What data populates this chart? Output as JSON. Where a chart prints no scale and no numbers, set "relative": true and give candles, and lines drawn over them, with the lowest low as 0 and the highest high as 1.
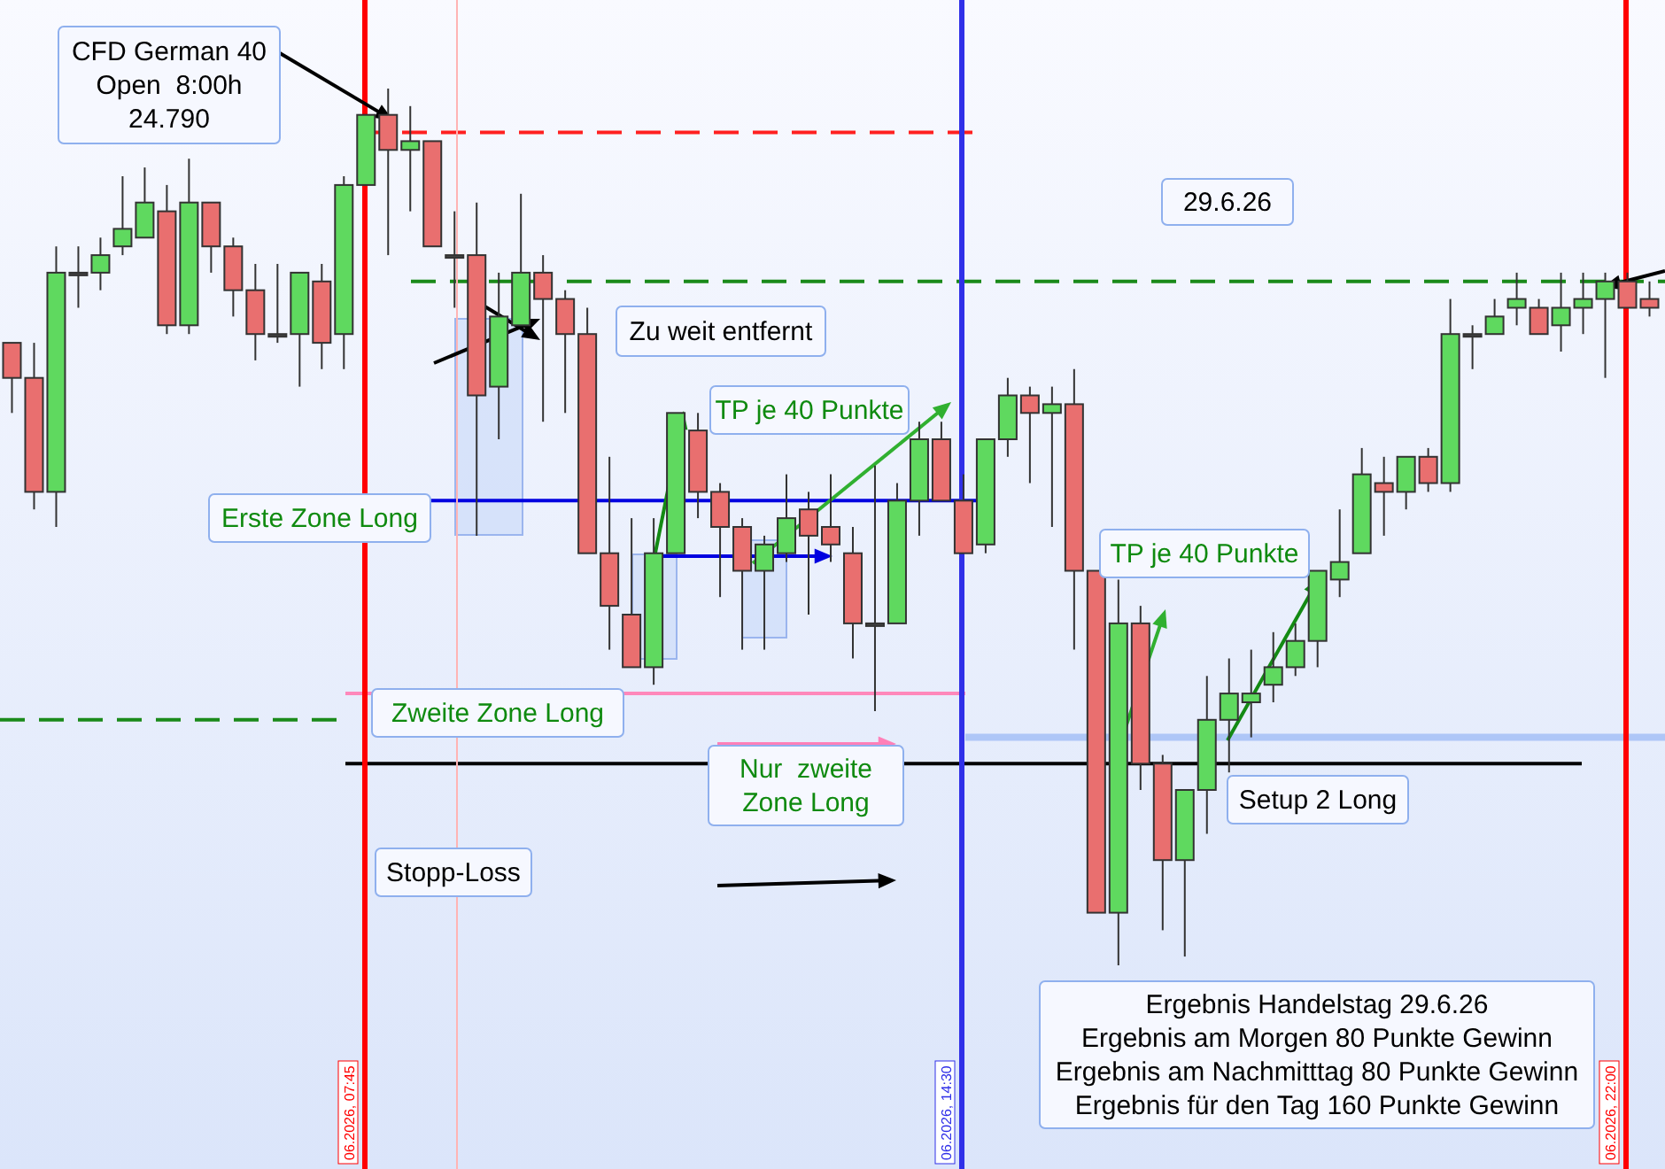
{
  "chart_data": {
    "type": "candlestick",
    "relative": true,
    "categories": [
      null,
      null,
      null,
      null,
      null,
      null,
      null,
      null,
      null,
      null,
      null,
      null,
      null,
      null,
      null,
      null,
      null,
      null,
      null,
      null,
      null,
      null,
      null,
      null,
      null,
      null,
      null,
      null,
      null,
      null,
      null,
      null,
      null,
      null,
      null,
      null,
      null,
      null,
      null,
      null,
      null,
      null,
      null,
      null,
      null,
      null,
      null,
      null,
      null,
      null,
      null,
      null,
      null,
      null,
      null,
      null,
      null,
      null,
      null,
      null,
      null,
      null,
      null,
      null,
      null,
      null,
      null,
      null,
      null,
      null,
      null,
      null,
      null,
      null,
      null
    ],
    "ohlc": [
      [
        0.71,
        0.71,
        0.63,
        0.67
      ],
      [
        0.67,
        0.71,
        0.52,
        0.54
      ],
      [
        0.54,
        0.82,
        0.5,
        0.79
      ],
      [
        0.79,
        0.82,
        0.75,
        0.79
      ],
      [
        0.79,
        0.83,
        0.77,
        0.81
      ],
      [
        0.82,
        0.9,
        0.81,
        0.84
      ],
      [
        0.83,
        0.91,
        0.83,
        0.87
      ],
      [
        0.86,
        0.89,
        0.72,
        0.73
      ],
      [
        0.73,
        0.92,
        0.72,
        0.87
      ],
      [
        0.87,
        0.87,
        0.79,
        0.82
      ],
      [
        0.82,
        0.83,
        0.74,
        0.77
      ],
      [
        0.77,
        0.8,
        0.69,
        0.72
      ],
      [
        0.72,
        0.8,
        0.71,
        0.72
      ],
      [
        0.72,
        0.79,
        0.66,
        0.79
      ],
      [
        0.78,
        0.8,
        0.68,
        0.71
      ],
      [
        0.72,
        0.9,
        0.68,
        0.89
      ],
      [
        0.89,
        0.97,
        0.89,
        0.97
      ],
      [
        0.97,
        1,
        0.81,
        0.93
      ],
      [
        0.93,
        0.98,
        0.86,
        0.94
      ],
      [
        0.94,
        0.94,
        0.82,
        0.82
      ],
      [
        0.81,
        0.86,
        0.75,
        0.81
      ],
      [
        0.81,
        0.87,
        0.49,
        0.65
      ],
      [
        0.66,
        0.79,
        0.6,
        0.74
      ],
      [
        0.73,
        0.88,
        0.73,
        0.79
      ],
      [
        0.79,
        0.81,
        0.62,
        0.76
      ],
      [
        0.76,
        0.77,
        0.63,
        0.72
      ],
      [
        0.72,
        0.75,
        0.47,
        0.47
      ],
      [
        0.47,
        0.58,
        0.36,
        0.41
      ],
      [
        0.4,
        0.51,
        0.34,
        0.34
      ],
      [
        0.34,
        0.51,
        0.32,
        0.47
      ],
      [
        0.47,
        0.63,
        0.47,
        0.63
      ],
      [
        0.61,
        0.63,
        0.51,
        0.54
      ],
      [
        0.54,
        0.55,
        0.42,
        0.5
      ],
      [
        0.5,
        0.51,
        0.36,
        0.45
      ],
      [
        0.45,
        0.49,
        0.36,
        0.48
      ],
      [
        0.47,
        0.56,
        0.46,
        0.51
      ],
      [
        0.52,
        0.54,
        0.4,
        0.49
      ],
      [
        0.5,
        0.56,
        0.46,
        0.48
      ],
      [
        0.47,
        0.5,
        0.35,
        0.39
      ],
      [
        0.39,
        0.57,
        0.29,
        0.39
      ],
      [
        0.39,
        0.55,
        0.39,
        0.53
      ],
      [
        0.53,
        0.62,
        0.49,
        0.6
      ],
      [
        0.6,
        0.62,
        0.53,
        0.53
      ],
      [
        0.53,
        0.56,
        0.47,
        0.47
      ],
      [
        0.48,
        0.6,
        0.47,
        0.6
      ],
      [
        0.6,
        0.67,
        0.58,
        0.65
      ],
      [
        0.65,
        0.66,
        0.55,
        0.63
      ],
      [
        0.63,
        0.66,
        0.5,
        0.64
      ],
      [
        0.64,
        0.68,
        0.36,
        0.45
      ],
      [
        0.45,
        0.45,
        0.06,
        0.06
      ],
      [
        0.06,
        0.44,
        0,
        0.39
      ],
      [
        0.39,
        0.41,
        0.2,
        0.23
      ],
      [
        0.23,
        0.24,
        0.04,
        0.12
      ],
      [
        0.12,
        0.2,
        0.01,
        0.2
      ],
      [
        0.2,
        0.33,
        0.15,
        0.28
      ],
      [
        0.28,
        0.35,
        0.22,
        0.31
      ],
      [
        0.3,
        0.36,
        0.26,
        0.31
      ],
      [
        0.32,
        0.38,
        0.3,
        0.34
      ],
      [
        0.34,
        0.39,
        0.33,
        0.37
      ],
      [
        0.37,
        0.45,
        0.34,
        0.45
      ],
      [
        0.44,
        0.52,
        0.42,
        0.46
      ],
      [
        0.47,
        0.59,
        0.47,
        0.56
      ],
      [
        0.55,
        0.58,
        0.49,
        0.54
      ],
      [
        0.54,
        0.58,
        0.52,
        0.58
      ],
      [
        0.58,
        0.59,
        0.54,
        0.55
      ],
      [
        0.55,
        0.76,
        0.54,
        0.72
      ],
      [
        0.72,
        0.73,
        0.68,
        0.72
      ],
      [
        0.72,
        0.76,
        0.72,
        0.74
      ],
      [
        0.75,
        0.79,
        0.73,
        0.76
      ],
      [
        0.75,
        0.76,
        0.72,
        0.72
      ],
      [
        0.73,
        0.79,
        0.7,
        0.75
      ],
      [
        0.75,
        0.79,
        0.72,
        0.76
      ],
      [
        0.76,
        0.79,
        0.67,
        0.78
      ],
      [
        0.78,
        0.79,
        0.75,
        0.75
      ],
      [
        0.76,
        0.78,
        0.74,
        0.75
      ]
    ],
    "ref_lines": [
      {
        "axis": "y",
        "value": 0.95,
        "color": "#ff2020",
        "line_style": "dashed"
      },
      {
        "axis": "y",
        "value": 0.78,
        "color": "#1a8a1a",
        "line_style": "dashed"
      },
      {
        "axis": "y",
        "value": 0.28,
        "color": "#1a8a1a",
        "line_style": "dashed"
      },
      {
        "axis": "y",
        "value": 0.53,
        "color": "#0000e0",
        "line_style": "solid"
      },
      {
        "axis": "y",
        "value": 0.31,
        "color": "#ff88bb",
        "line_style": "solid"
      },
      {
        "axis": "y",
        "value": 0.23,
        "color": "#000000",
        "line_style": "solid"
      },
      {
        "axis": "y",
        "value": 0.26,
        "color": "#aec6f7",
        "line_style": "solid"
      },
      {
        "axis": "x",
        "label": "06.2026, 07:45",
        "color": "#ff0000"
      },
      {
        "axis": "x",
        "label": null,
        "color": "#ffb4b4"
      },
      {
        "axis": "x",
        "label": "06.2026, 14:30",
        "color": "#3030e8"
      },
      {
        "axis": "x",
        "label": "06.2026, 22:00",
        "color": "#ff0000"
      }
    ],
    "annotations": [
      "CFD German 40\nOpen  8:00h\n24.790",
      "29.6.26",
      "Zu weit entfernt",
      "TP je 40 Punkte",
      "Erste Zone Long",
      "TP je 40 Punkte",
      "Zweite Zone Long",
      "Nur  zweite\nZone Long",
      "Stopp-Loss",
      "Setup 2 Long",
      "Ergebnis Handelstag 29.6.26\nErgebnis am Morgen 80 Punkte Gewinn\nErgebnis am Nachmitttag 80 Punkte Gewinn\nErgebnis für den Tag 160 Punkte Gewinn"
    ]
  }
}
